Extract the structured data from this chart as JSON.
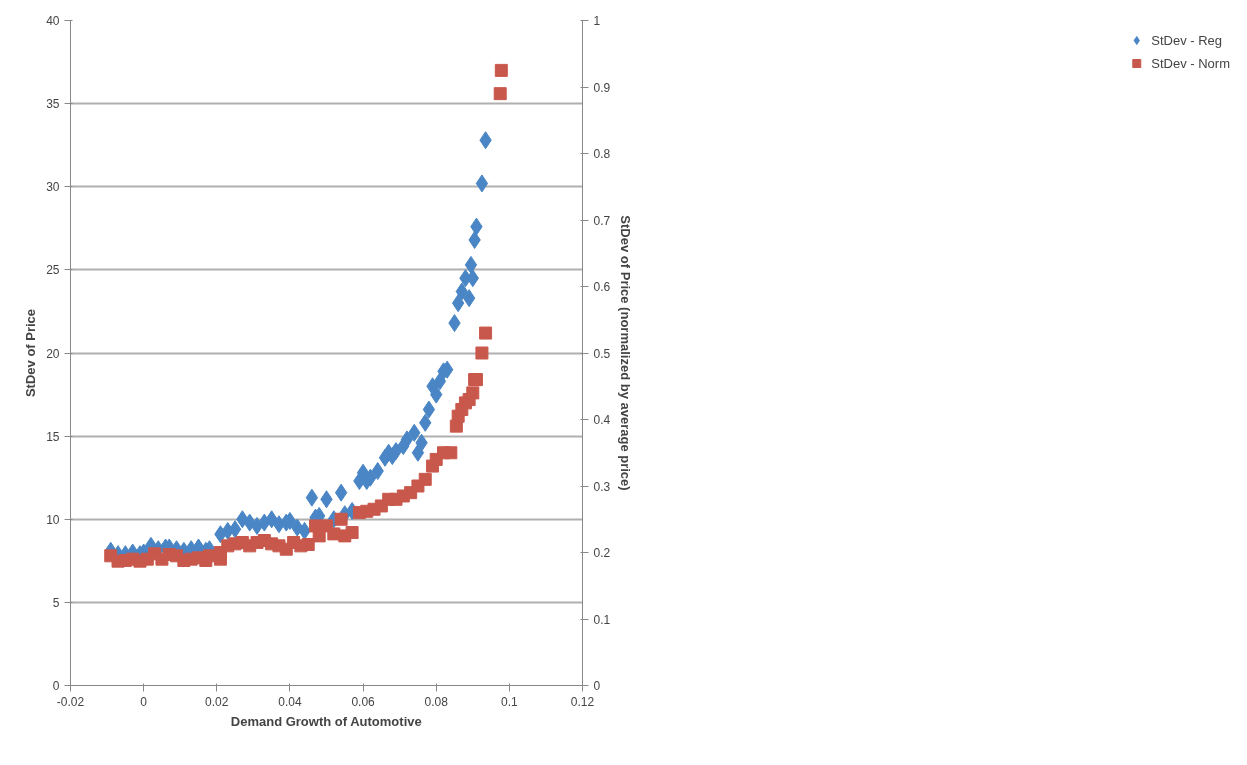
{
  "chart_data": {
    "type": "scatter",
    "xlabel": "Demand Growth of Automotive",
    "ylabel": "StDev of Price",
    "y2label": "StDev of Price (normalized by average price)",
    "xlim": [
      -0.02,
      0.12
    ],
    "xticks": [
      -0.02,
      0,
      0.02,
      0.04,
      0.06,
      0.08,
      0.1,
      0.12
    ],
    "ylim": [
      0,
      40
    ],
    "yticks": [
      0,
      5,
      10,
      15,
      20,
      25,
      30,
      35,
      40
    ],
    "y2lim": [
      0,
      1
    ],
    "y2ticks": [
      0,
      0.1,
      0.2,
      0.3,
      0.4,
      0.5,
      0.6,
      0.7,
      0.8,
      0.9,
      1
    ],
    "grid": "y",
    "legend": "right",
    "series": [
      {
        "name": "StDev - Reg",
        "color": "#4a86c5",
        "marker": "diamond",
        "x": [
          -0.009,
          -0.007,
          -0.005,
          -0.003,
          -0.001,
          0.0,
          0.002,
          0.004,
          0.006,
          0.007,
          0.009,
          0.011,
          0.013,
          0.015,
          0.017,
          0.018,
          0.021,
          0.023,
          0.025,
          0.027,
          0.029,
          0.031,
          0.033,
          0.035,
          0.037,
          0.039,
          0.04,
          0.042,
          0.044,
          0.046,
          0.047,
          0.048,
          0.05,
          0.052,
          0.054,
          0.055,
          0.057,
          0.059,
          0.06,
          0.061,
          0.062,
          0.064,
          0.066,
          0.067,
          0.068,
          0.069,
          0.071,
          0.072,
          0.074,
          0.075,
          0.076,
          0.077,
          0.078,
          0.079,
          0.08,
          0.081,
          0.082,
          0.083,
          0.085,
          0.086,
          0.087,
          0.088,
          0.089,
          0.0895,
          0.09,
          0.0905,
          0.091,
          0.0925,
          0.0935
        ],
        "values": [
          8.1,
          7.9,
          7.9,
          8.0,
          7.9,
          8.0,
          8.4,
          8.2,
          8.3,
          8.3,
          8.2,
          8.1,
          8.2,
          8.3,
          8.1,
          8.2,
          9.1,
          9.3,
          9.4,
          10.0,
          9.8,
          9.6,
          9.8,
          10.0,
          9.7,
          9.8,
          9.9,
          9.5,
          9.3,
          11.3,
          10.1,
          10.2,
          11.2,
          10.0,
          11.6,
          10.3,
          10.5,
          12.3,
          12.8,
          12.3,
          12.5,
          12.9,
          13.7,
          14.0,
          13.8,
          14.1,
          14.4,
          14.8,
          15.2,
          14.0,
          14.6,
          15.8,
          16.6,
          18.0,
          17.5,
          18.3,
          18.9,
          19.0,
          21.8,
          23.0,
          23.7,
          24.5,
          23.3,
          25.3,
          24.5,
          26.8,
          27.6,
          30.2,
          32.8
        ]
      },
      {
        "name": "StDev - Norm",
        "color": "#c9584c",
        "marker": "square",
        "axis": "y2",
        "x": [
          -0.009,
          -0.007,
          -0.005,
          -0.003,
          -0.001,
          0.001,
          0.003,
          0.005,
          0.007,
          0.009,
          0.011,
          0.013,
          0.015,
          0.017,
          0.018,
          0.021,
          0.021,
          0.023,
          0.025,
          0.027,
          0.029,
          0.031,
          0.033,
          0.035,
          0.037,
          0.039,
          0.041,
          0.043,
          0.045,
          0.047,
          0.048,
          0.05,
          0.052,
          0.054,
          0.055,
          0.057,
          0.059,
          0.061,
          0.063,
          0.065,
          0.067,
          0.069,
          0.071,
          0.073,
          0.075,
          0.077,
          0.079,
          0.08,
          0.082,
          0.084,
          0.0855,
          0.086,
          0.087,
          0.088,
          0.089,
          0.09,
          0.0905,
          0.091,
          0.0925,
          0.0935,
          0.0975,
          0.0978
        ],
        "values": [
          0.195,
          0.187,
          0.188,
          0.19,
          0.187,
          0.19,
          0.198,
          0.19,
          0.197,
          0.195,
          0.188,
          0.19,
          0.192,
          0.188,
          0.195,
          0.19,
          0.2,
          0.21,
          0.213,
          0.215,
          0.21,
          0.215,
          0.218,
          0.213,
          0.21,
          0.205,
          0.215,
          0.21,
          0.212,
          0.24,
          0.225,
          0.24,
          0.228,
          0.25,
          0.225,
          0.23,
          0.26,
          0.262,
          0.265,
          0.27,
          0.28,
          0.28,
          0.285,
          0.29,
          0.3,
          0.31,
          0.33,
          0.34,
          0.35,
          0.35,
          0.39,
          0.405,
          0.415,
          0.425,
          0.43,
          0.44,
          0.46,
          0.46,
          0.5,
          0.53,
          0.89,
          0.925
        ]
      }
    ]
  }
}
